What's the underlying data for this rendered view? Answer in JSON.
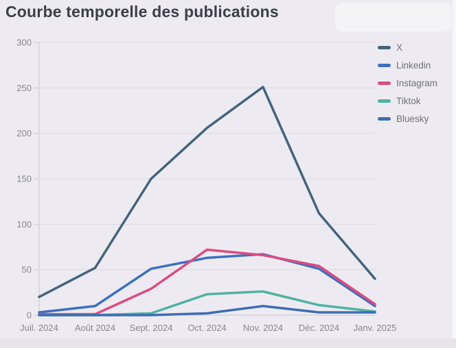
{
  "page": {
    "title": "Courbe temporelle des publications"
  },
  "chart_data": {
    "type": "line",
    "title": "Courbe temporelle des publications",
    "categories": [
      "Juil. 2024",
      "Août 2024",
      "Sept. 2024",
      "Oct. 2024",
      "Nov. 2024",
      "Déc. 2024",
      "Janv. 2025"
    ],
    "series": [
      {
        "name": "X",
        "color": "#44637d",
        "values": [
          20,
          52,
          150,
          206,
          251,
          112,
          40
        ]
      },
      {
        "name": "Linkedin",
        "color": "#3b70c1",
        "values": [
          3,
          10,
          51,
          63,
          67,
          51,
          10
        ]
      },
      {
        "name": "Instagram",
        "color": "#de4a80",
        "values": [
          1,
          1,
          29,
          72,
          66,
          54,
          12
        ]
      },
      {
        "name": "Tiktok",
        "color": "#50b2a4",
        "values": [
          0,
          0,
          2,
          23,
          26,
          11,
          4
        ]
      },
      {
        "name": "Bluesky",
        "color": "#3e6cb5",
        "values": [
          0,
          0,
          0,
          2,
          10,
          3,
          3
        ]
      }
    ],
    "ylim": [
      0,
      300
    ],
    "yticks": [
      0,
      50,
      100,
      150,
      200,
      250,
      300
    ],
    "grid": "horizontal",
    "legend_position": "right-top"
  },
  "colors": {
    "background": "#edebf1",
    "gridline": "#dbd9e0",
    "axis_line": "#c8c6cf",
    "tick_label": "#85868e",
    "legend_label": "#6e7177",
    "title": "#3a3f48"
  }
}
